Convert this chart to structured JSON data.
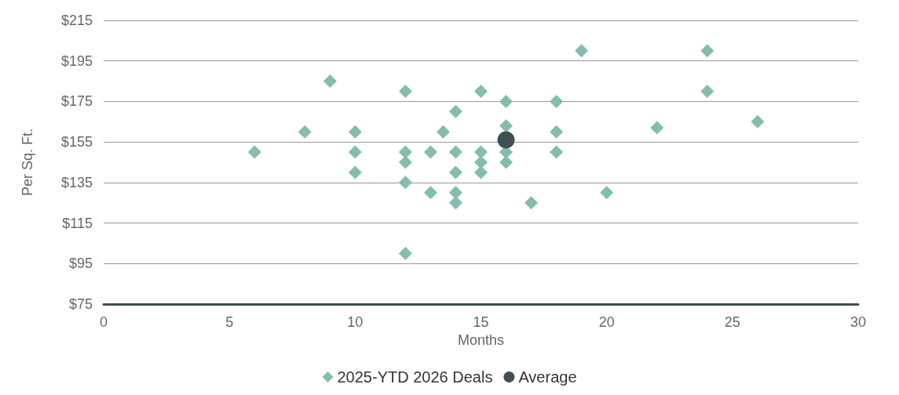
{
  "chart_data": {
    "type": "scatter",
    "xlabel": "Months",
    "ylabel": "Per Sq. Ft.",
    "xlim": [
      0,
      30
    ],
    "xticks": [
      0,
      5,
      10,
      15,
      20,
      25,
      30
    ],
    "ylim": [
      75,
      215
    ],
    "yticks": [
      {
        "value": 75,
        "label": "$75"
      },
      {
        "value": 95,
        "label": "$95"
      },
      {
        "value": 115,
        "label": "$115"
      },
      {
        "value": 135,
        "label": "$135"
      },
      {
        "value": 155,
        "label": "$155"
      },
      {
        "value": 175,
        "label": "$175"
      },
      {
        "value": 195,
        "label": "$195"
      },
      {
        "value": 215,
        "label": "$215"
      }
    ],
    "grid": "y",
    "legend": "bottom",
    "series": [
      {
        "name": "2025-YTD 2026 Deals",
        "color": "#84bcad",
        "marker": "diamond",
        "x": [
          6,
          8,
          9,
          10,
          10,
          10,
          12,
          12,
          12,
          12,
          12,
          13,
          13,
          13.5,
          14,
          14,
          14,
          14,
          14,
          15,
          15,
          15,
          15,
          16,
          16,
          16,
          16,
          17,
          18,
          18,
          18,
          19,
          20,
          22,
          24,
          24,
          26
        ],
        "values": [
          150,
          160,
          185,
          160,
          150,
          140,
          180,
          150,
          145,
          135,
          100,
          150,
          130,
          160,
          170,
          150,
          140,
          130,
          125,
          180,
          150,
          145,
          140,
          175,
          163,
          150,
          145,
          125,
          175,
          160,
          150,
          200,
          130,
          162,
          200,
          180,
          165
        ]
      },
      {
        "name": "Average",
        "color": "#3f4f53",
        "marker": "circle",
        "x": [
          16
        ],
        "values": [
          156
        ]
      }
    ]
  }
}
